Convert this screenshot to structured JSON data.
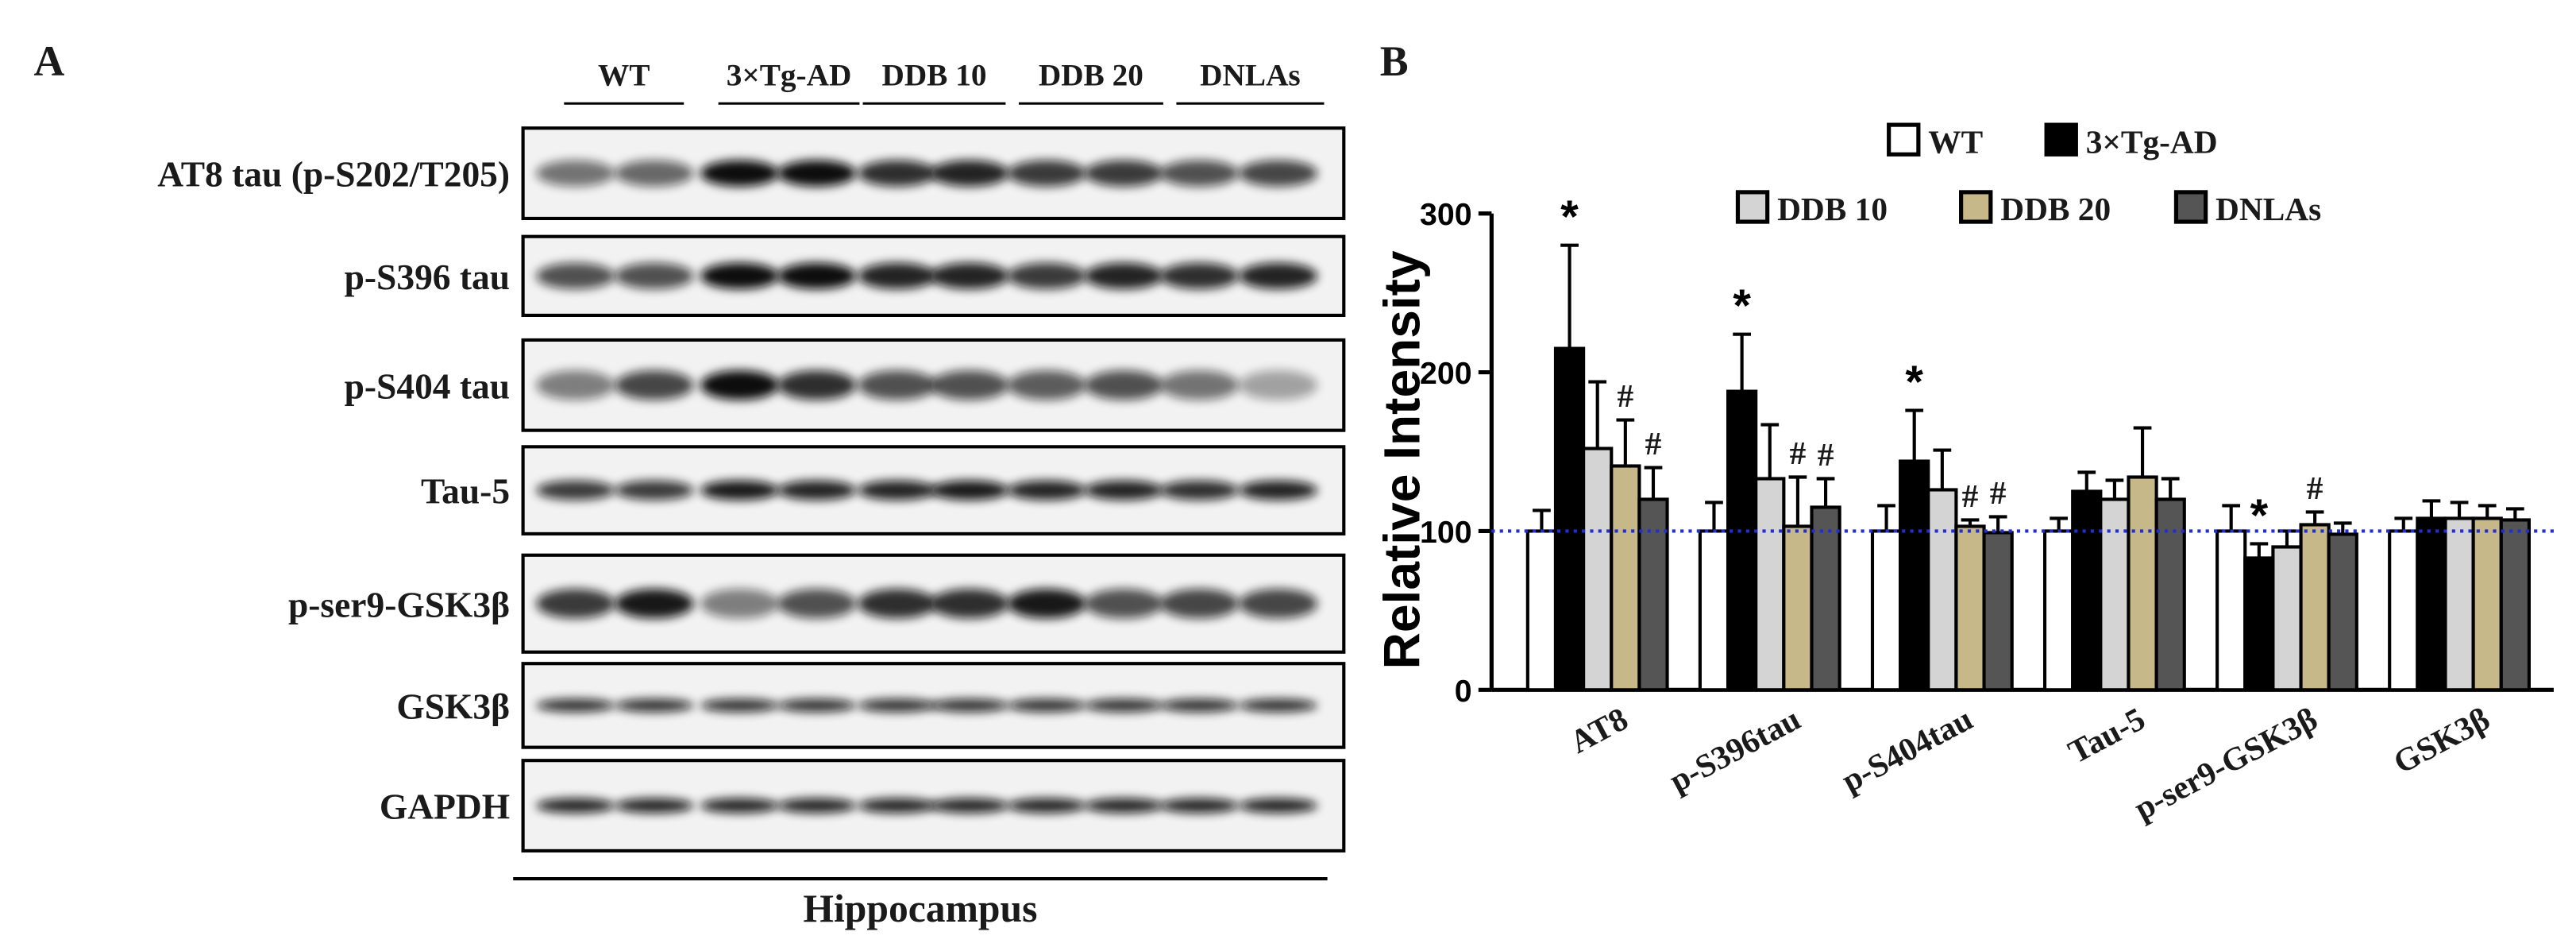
{
  "panel_a": {
    "label": "A",
    "groups": [
      "WT",
      "3×Tg-AD",
      "DDB 10",
      "DDB 20",
      "DNLAs"
    ],
    "rows": [
      "AT8 tau (p-S202/T205)",
      "p-S396 tau",
      "p-S404 tau",
      "Tau-5",
      "p-ser9-GSK3β",
      "GSK3β",
      "GAPDH"
    ],
    "region": "Hippocampus"
  },
  "panel_b": {
    "label": "B"
  },
  "chart_data": {
    "type": "bar",
    "y_label": "Relative Intensity",
    "categories": [
      "AT8",
      "p-S396tau",
      "p-S404tau",
      "Tau-5",
      "p-ser9-GSK3β",
      "GSK3β"
    ],
    "series": [
      {
        "name": "WT",
        "color": "#ffffff",
        "values": [
          100,
          100,
          100,
          100,
          100,
          100
        ],
        "errors": [
          13,
          18,
          16,
          8,
          16,
          8
        ],
        "annotations": [
          null,
          null,
          null,
          null,
          null,
          null
        ]
      },
      {
        "name": "3×Tg-AD",
        "color": "#000000",
        "values": [
          215,
          188,
          144,
          125,
          83,
          108
        ],
        "errors": [
          65,
          36,
          32,
          12,
          9,
          11
        ],
        "annotations": [
          "*",
          "*",
          "*",
          null,
          "*",
          null
        ]
      },
      {
        "name": "DDB 10",
        "color": "#d4d4d4",
        "values": [
          152,
          133,
          126,
          120,
          90,
          108
        ],
        "errors": [
          42,
          34,
          25,
          12,
          10,
          10
        ],
        "annotations": [
          null,
          null,
          null,
          null,
          null,
          null
        ]
      },
      {
        "name": "DDB 20",
        "color": "#c6b889",
        "values": [
          141,
          103,
          103,
          134,
          104,
          108
        ],
        "errors": [
          29,
          31,
          4,
          31,
          8,
          8
        ],
        "annotations": [
          "#",
          "#",
          "#",
          null,
          "#",
          null
        ]
      },
      {
        "name": "DNLAs",
        "color": "#555555",
        "values": [
          120,
          115,
          99,
          120,
          98,
          107
        ],
        "errors": [
          20,
          18,
          10,
          13,
          7,
          7
        ],
        "annotations": [
          "#",
          "#",
          "#",
          null,
          null,
          null
        ]
      }
    ],
    "ylim": [
      0,
      300
    ],
    "yticks": [
      0,
      100,
      200,
      300
    ],
    "reference_line": 100,
    "reference_color": "#1f2fd0"
  }
}
